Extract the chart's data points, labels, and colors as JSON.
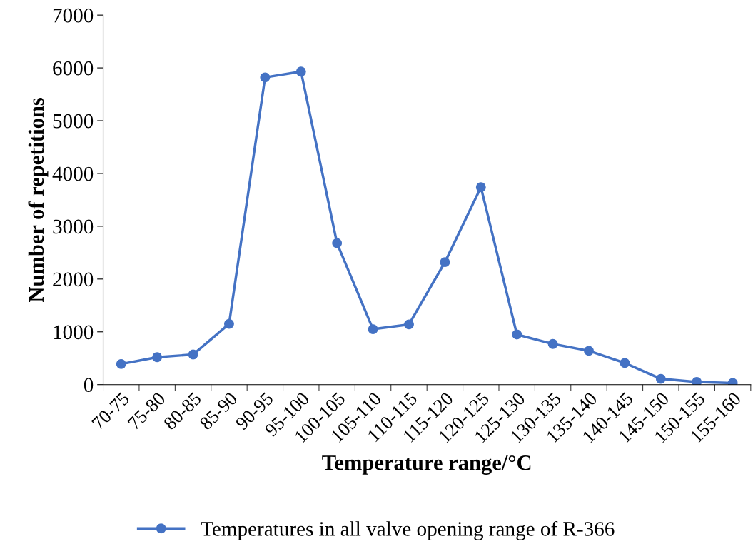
{
  "chart_data": {
    "type": "line",
    "xlabel": "Temperature range/°C",
    "ylabel": "Number of repetitions",
    "categories": [
      "70-75",
      "75-80",
      "80-85",
      "85-90",
      "90-95",
      "95-100",
      "100-105",
      "105-110",
      "110-115",
      "115-120",
      "120-125",
      "125-130",
      "130-135",
      "135-140",
      "140-145",
      "145-150",
      "150-155",
      "155-160"
    ],
    "series": [
      {
        "name": "Temperatures in all valve opening range of R-366",
        "color": "#4472c4",
        "values": [
          390,
          520,
          570,
          1150,
          5820,
          5930,
          2680,
          1050,
          1140,
          2320,
          3740,
          950,
          770,
          640,
          410,
          110,
          50,
          30
        ]
      }
    ],
    "ylim": [
      0,
      7000
    ],
    "yticks": [
      0,
      1000,
      2000,
      3000,
      4000,
      5000,
      6000,
      7000
    ],
    "grid": false,
    "legend": "bottom",
    "marker": "circle",
    "line_style": "solid"
  }
}
